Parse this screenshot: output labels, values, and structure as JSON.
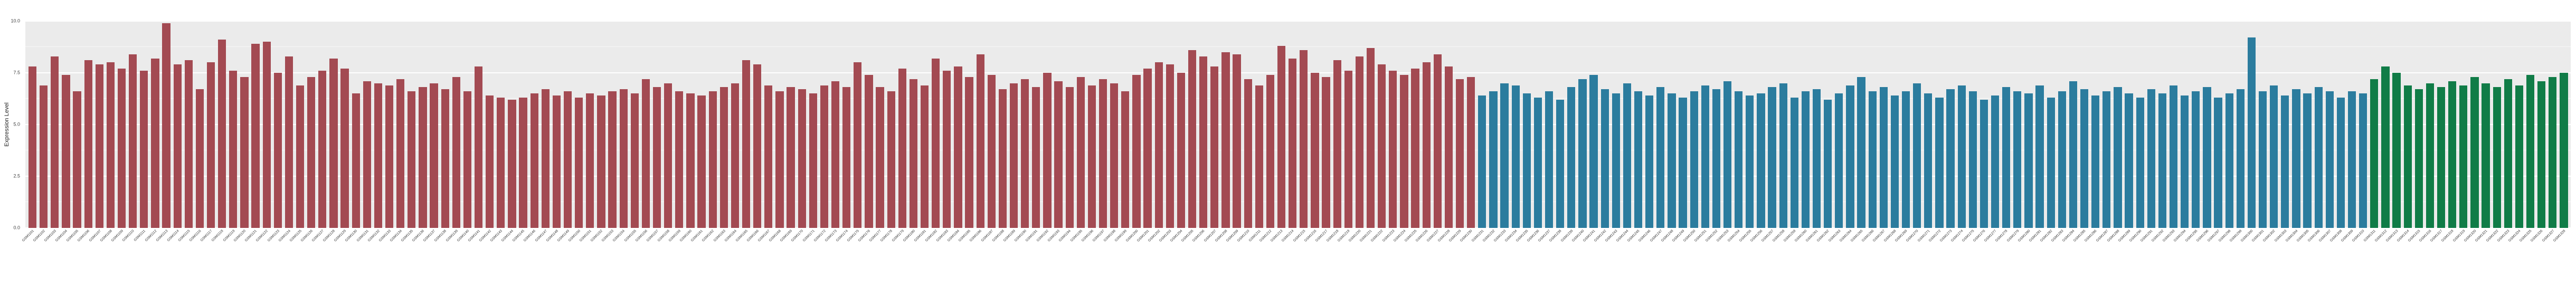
{
  "chart_data": {
    "type": "bar",
    "title": "",
    "xlabel": "",
    "ylabel": "Expression Level",
    "ylim": [
      0,
      10
    ],
    "yticks": [
      "0.0",
      "2.5",
      "5.0",
      "7.5",
      "10.0"
    ],
    "ytick_values": [
      0,
      2.5,
      5,
      7.5,
      10
    ],
    "minor_ticks": [
      1.25,
      3.75,
      6.25,
      8.75
    ],
    "grid": true,
    "legend_position": "none",
    "panel_bg": "#EBEBEB",
    "series": [
      {
        "name": "group-red",
        "color": "#A34A52",
        "labels": [
          "GSM1101",
          "GSM1102",
          "GSM1103",
          "GSM1104",
          "GSM1105",
          "GSM1106",
          "GSM1107",
          "GSM1108",
          "GSM1109",
          "GSM1110",
          "GSM1111",
          "GSM1112",
          "GSM1113",
          "GSM1114",
          "GSM1115",
          "GSM1116",
          "GSM1117",
          "GSM1118",
          "GSM1119",
          "GSM1120",
          "GSM1121",
          "GSM1122",
          "GSM1123",
          "GSM1124",
          "GSM1125",
          "GSM1126",
          "GSM1127",
          "GSM1128",
          "GSM1129",
          "GSM1130",
          "GSM1131",
          "GSM1132",
          "GSM1133",
          "GSM1134",
          "GSM1135",
          "GSM1136",
          "GSM1137",
          "GSM1138",
          "GSM1139",
          "GSM1140",
          "GSM1141",
          "GSM1142",
          "GSM1143",
          "GSM1144",
          "GSM1145",
          "GSM1146",
          "GSM1147",
          "GSM1148",
          "GSM1149",
          "GSM1150",
          "GSM1151",
          "GSM1152",
          "GSM1153",
          "GSM1154",
          "GSM1155",
          "GSM1156",
          "GSM1157",
          "GSM1158",
          "GSM1159",
          "GSM1160",
          "GSM1161",
          "GSM1162",
          "GSM1163",
          "GSM1164",
          "GSM1165",
          "GSM1166",
          "GSM1167",
          "GSM1168",
          "GSM1169",
          "GSM1170",
          "GSM1171",
          "GSM1172",
          "GSM1173",
          "GSM1174",
          "GSM1175",
          "GSM1176",
          "GSM1177",
          "GSM1178",
          "GSM1179",
          "GSM1180",
          "GSM1181",
          "GSM1182",
          "GSM1183",
          "GSM1184",
          "GSM1185",
          "GSM1186",
          "GSM1187",
          "GSM1188",
          "GSM1189",
          "GSM1190",
          "GSM1191",
          "GSM1192",
          "GSM1193",
          "GSM1194",
          "GSM1195",
          "GSM1196",
          "GSM1197",
          "GSM1198",
          "GSM1199",
          "GSM1200",
          "GSM1201",
          "GSM1202",
          "GSM1203",
          "GSM1204",
          "GSM1205",
          "GSM1206",
          "GSM1207",
          "GSM1208",
          "GSM1209",
          "GSM1210",
          "GSM1211",
          "GSM1212",
          "GSM1213",
          "GSM1214",
          "GSM1215",
          "GSM1216",
          "GSM1217",
          "GSM1218",
          "GSM1219",
          "GSM1220",
          "GSM1221",
          "GSM1222",
          "GSM1223",
          "GSM1224",
          "GSM1225",
          "GSM1226",
          "GSM1227",
          "GSM1228",
          "GSM1229",
          "GSM1230"
        ],
        "values": [
          7.8,
          6.9,
          8.3,
          7.4,
          6.6,
          8.1,
          7.9,
          8.0,
          7.7,
          8.4,
          7.6,
          8.2,
          9.9,
          7.9,
          8.1,
          6.7,
          8.0,
          9.1,
          7.6,
          7.3,
          8.9,
          9.0,
          7.5,
          8.3,
          6.9,
          7.3,
          7.6,
          8.2,
          7.7,
          6.5,
          7.1,
          7.0,
          6.9,
          7.2,
          6.6,
          6.8,
          7.0,
          6.7,
          7.3,
          6.6,
          7.8,
          6.4,
          6.3,
          6.2,
          6.3,
          6.5,
          6.7,
          6.4,
          6.6,
          6.3,
          6.5,
          6.4,
          6.6,
          6.7,
          6.5,
          7.2,
          6.8,
          7.0,
          6.6,
          6.5,
          6.4,
          6.6,
          6.8,
          7.0,
          8.1,
          7.9,
          6.9,
          6.6,
          6.8,
          6.7,
          6.5,
          6.9,
          7.1,
          6.8,
          8.0,
          7.4,
          6.8,
          6.6,
          7.7,
          7.2,
          6.9,
          8.2,
          7.6,
          7.8,
          7.3,
          8.4,
          7.4,
          6.7,
          7.0,
          7.2,
          6.8,
          7.5,
          7.1,
          6.8,
          7.3,
          6.9,
          7.2,
          7.0,
          6.6,
          7.4,
          7.7,
          8.0,
          7.9,
          7.5,
          8.6,
          8.3,
          7.8,
          8.5,
          8.4,
          7.2,
          6.9,
          7.4,
          8.8,
          8.2,
          8.6,
          7.5,
          7.3,
          8.1,
          7.6,
          8.3,
          8.7,
          7.9,
          7.6,
          7.4,
          7.7,
          8.0,
          8.4,
          7.8,
          7.2,
          7.3
        ]
      },
      {
        "name": "group-blue",
        "color": "#2B7C9E",
        "labels": [
          "GSM1231",
          "GSM1232",
          "GSM1233",
          "GSM1234",
          "GSM1235",
          "GSM1236",
          "GSM1237",
          "GSM1238",
          "GSM1239",
          "GSM1240",
          "GSM1241",
          "GSM1242",
          "GSM1243",
          "GSM1244",
          "GSM1245",
          "GSM1246",
          "GSM1247",
          "GSM1248",
          "GSM1249",
          "GSM1250",
          "GSM1251",
          "GSM1252",
          "GSM1253",
          "GSM1254",
          "GSM1255",
          "GSM1256",
          "GSM1257",
          "GSM1258",
          "GSM1259",
          "GSM1260",
          "GSM1261",
          "GSM1262",
          "GSM1263",
          "GSM1264",
          "GSM1265",
          "GSM1266",
          "GSM1267",
          "GSM1268",
          "GSM1269",
          "GSM1270",
          "GSM1271",
          "GSM1272",
          "GSM1273",
          "GSM1274",
          "GSM1275",
          "GSM1276",
          "GSM1277",
          "GSM1278",
          "GSM1279",
          "GSM1280",
          "GSM1281",
          "GSM1282",
          "GSM1283",
          "GSM1284",
          "GSM1285",
          "GSM1286",
          "GSM1287",
          "GSM1288",
          "GSM1289",
          "GSM1290",
          "GSM1291",
          "GSM1292",
          "GSM1293",
          "GSM1294",
          "GSM1295",
          "GSM1296",
          "GSM1297",
          "GSM1298",
          "GSM1299",
          "GSM1300",
          "GSM1301",
          "GSM1302",
          "GSM1303",
          "GSM1304",
          "GSM1305",
          "GSM1306",
          "GSM1307",
          "GSM1308",
          "GSM1309",
          "GSM1310"
        ],
        "values": [
          6.4,
          6.6,
          7.0,
          6.9,
          6.5,
          6.3,
          6.6,
          6.2,
          6.8,
          7.2,
          7.4,
          6.7,
          6.5,
          7.0,
          6.6,
          6.4,
          6.8,
          6.5,
          6.3,
          6.6,
          6.9,
          6.7,
          7.1,
          6.6,
          6.4,
          6.5,
          6.8,
          7.0,
          6.3,
          6.6,
          6.7,
          6.2,
          6.5,
          6.9,
          7.3,
          6.6,
          6.8,
          6.4,
          6.6,
          7.0,
          6.5,
          6.3,
          6.7,
          6.9,
          6.6,
          6.2,
          6.4,
          6.8,
          6.6,
          6.5,
          6.9,
          6.3,
          6.6,
          7.1,
          6.7,
          6.4,
          6.6,
          6.8,
          6.5,
          6.3,
          6.7,
          6.5,
          6.9,
          6.4,
          6.6,
          6.8,
          6.3,
          6.5,
          6.7,
          9.2,
          6.6,
          6.9,
          6.4,
          6.7,
          6.5,
          6.8,
          6.6,
          6.3,
          6.6,
          6.5
        ]
      },
      {
        "name": "group-green",
        "color": "#107C47",
        "labels": [
          "GSM1311",
          "GSM1312",
          "GSM1313",
          "GSM1314",
          "GSM1315",
          "GSM1316",
          "GSM1317",
          "GSM1318",
          "GSM1319",
          "GSM1320",
          "GSM1321",
          "GSM1322",
          "GSM1323",
          "GSM1324",
          "GSM1325",
          "GSM1326",
          "GSM1327",
          "GSM1328"
        ],
        "values": [
          7.2,
          7.8,
          7.5,
          6.9,
          6.7,
          7.0,
          6.8,
          7.1,
          6.9,
          7.3,
          7.0,
          6.8,
          7.2,
          6.9,
          7.4,
          7.1,
          7.3,
          7.5
        ]
      }
    ]
  }
}
